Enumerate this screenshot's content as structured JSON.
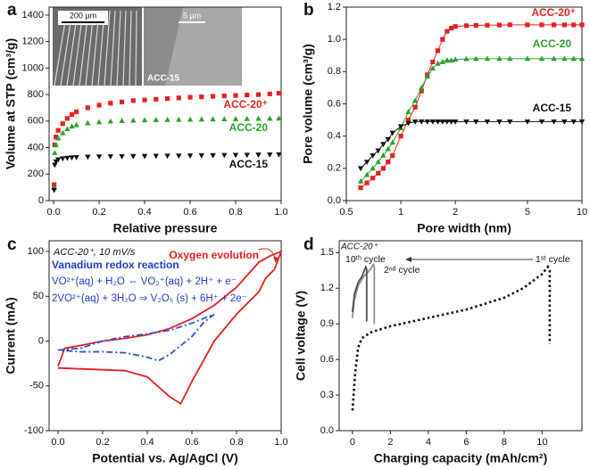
{
  "chart_data": [
    {
      "type": "scatter",
      "panel": "a",
      "xlabel": "Relative pressure",
      "ylabel": "Volume at STP (cm³/g)",
      "xlim": [
        -0.02,
        1.0
      ],
      "ylim": [
        0,
        1460
      ],
      "xticks": [
        {
          "value": 0.0,
          "label": "0.0"
        },
        0.2,
        0.4,
        0.6,
        0.8,
        {
          "value": 1.0,
          "label": "1.0"
        }
      ],
      "yticks": [
        0,
        200,
        400,
        600,
        800,
        1000,
        1200,
        1400
      ],
      "inset_labels": [
        "200 µm",
        "5 µm",
        "ACC-15"
      ],
      "x": [
        0.002,
        0.005,
        0.01,
        0.02,
        0.04,
        0.06,
        0.08,
        0.1,
        0.15,
        0.2,
        0.25,
        0.3,
        0.35,
        0.4,
        0.45,
        0.5,
        0.55,
        0.6,
        0.65,
        0.7,
        0.75,
        0.8,
        0.85,
        0.9,
        0.95,
        0.99
      ],
      "series": [
        {
          "name": "ACC-20⁺",
          "color": "#e8201f",
          "marker": "square",
          "values": [
            120,
            420,
            480,
            530,
            580,
            620,
            650,
            670,
            700,
            720,
            735,
            745,
            755,
            760,
            765,
            770,
            775,
            780,
            783,
            787,
            790,
            793,
            797,
            800,
            805,
            810
          ]
        },
        {
          "name": "ACC-20",
          "color": "#27a327",
          "marker": "triangle",
          "values": [
            100,
            360,
            420,
            470,
            510,
            540,
            560,
            570,
            585,
            592,
            598,
            602,
            605,
            607,
            609,
            610,
            611,
            612,
            613,
            614,
            615,
            616,
            617,
            618,
            619,
            620
          ]
        },
        {
          "name": "ACC-15",
          "color": "#111111",
          "marker": "down-triangle",
          "values": [
            80,
            270,
            295,
            310,
            318,
            322,
            325,
            327,
            330,
            332,
            333,
            334,
            335,
            336,
            337,
            338,
            339,
            340,
            341,
            342,
            343,
            344,
            345,
            346,
            347,
            348
          ]
        }
      ]
    },
    {
      "type": "scatter",
      "panel": "b",
      "xlabel": "Pore width (nm)",
      "ylabel": "Pore volume (cm³/g)",
      "xscale": "log",
      "connect": true,
      "xlim": [
        0.5,
        10
      ],
      "ylim": [
        0,
        1.2
      ],
      "xticks": [
        0.5,
        1,
        2,
        5,
        10
      ],
      "yticks": [
        {
          "value": 0.0,
          "label": "0.0"
        },
        0.2,
        0.4,
        0.6,
        0.8,
        {
          "value": 1.0,
          "label": "1.0"
        },
        1.2
      ],
      "x": [
        0.6,
        0.65,
        0.7,
        0.75,
        0.8,
        0.85,
        0.9,
        1.0,
        1.1,
        1.2,
        1.3,
        1.4,
        1.5,
        1.6,
        1.7,
        1.8,
        1.9,
        2.0,
        2.3,
        2.6,
        3,
        3.5,
        4,
        5,
        6,
        7,
        8,
        9,
        10
      ],
      "series": [
        {
          "name": "ACC-20⁺",
          "color": "#e8201f",
          "marker": "square",
          "values": [
            0.08,
            0.11,
            0.14,
            0.17,
            0.2,
            0.24,
            0.28,
            0.4,
            0.5,
            0.58,
            0.68,
            0.78,
            0.86,
            0.93,
            1.0,
            1.05,
            1.07,
            1.08,
            1.085,
            1.087,
            1.088,
            1.089,
            1.09,
            1.09,
            1.09,
            1.09,
            1.09,
            1.09,
            1.09
          ]
        },
        {
          "name": "ACC-20",
          "color": "#27a327",
          "marker": "triangle",
          "values": [
            0.12,
            0.16,
            0.2,
            0.24,
            0.28,
            0.32,
            0.36,
            0.45,
            0.55,
            0.62,
            0.7,
            0.77,
            0.82,
            0.85,
            0.86,
            0.87,
            0.87,
            0.875,
            0.878,
            0.88,
            0.88,
            0.88,
            0.88,
            0.88,
            0.88,
            0.88,
            0.88,
            0.88,
            0.88
          ]
        },
        {
          "name": "ACC-15",
          "color": "#111111",
          "marker": "down-triangle",
          "values": [
            0.2,
            0.24,
            0.28,
            0.31,
            0.35,
            0.38,
            0.42,
            0.46,
            0.48,
            0.49,
            0.49,
            0.49,
            0.49,
            0.49,
            0.49,
            0.49,
            0.49,
            0.49,
            0.49,
            0.49,
            0.49,
            0.49,
            0.49,
            0.49,
            0.49,
            0.49,
            0.49,
            0.49,
            0.49
          ]
        }
      ]
    },
    {
      "type": "line",
      "panel": "c",
      "xlabel": "Potential vs. Ag/AgCl (V)",
      "ylabel": "Current (mA)",
      "xlim": [
        -0.04,
        1.0
      ],
      "ylim": [
        -100,
        112
      ],
      "xticks": [
        {
          "value": 0.0,
          "label": "0.0"
        },
        0.2,
        0.4,
        0.6,
        0.8,
        {
          "value": 1.0,
          "label": "1.0"
        }
      ],
      "yticks": [
        -100,
        -50,
        0,
        50,
        100
      ],
      "annotations": [
        {
          "text": "ACC-20⁺, 10 mV/s",
          "color": "#111111"
        },
        {
          "text": "Oxygen evolution",
          "color": "#e02020"
        },
        {
          "text": "Vanadium redox reaction",
          "color": "#1f3fbf"
        },
        {
          "text": "VO²⁺(aq) + H₂O ⇔ VO₂⁺(aq) + 2H⁺ + e⁻",
          "color": "#1f3fbf"
        },
        {
          "text": "2VO²⁺(aq) + 3H₂O ⇒ V₂O₅ (s) + 6H⁺ + 2e⁻",
          "color": "#1f3fbf"
        }
      ],
      "series": [
        {
          "color": "#e02020",
          "dash": "solid",
          "x": [
            0,
            0.03,
            0.1,
            0.2,
            0.3,
            0.4,
            0.5,
            0.6,
            0.7,
            0.8,
            0.9,
            0.95,
            1.0,
            0.97,
            0.93,
            0.9,
            0.8,
            0.7,
            0.6,
            0.55,
            0.5,
            0.4,
            0.3,
            0.2,
            0.1,
            0
          ],
          "values": [
            -28,
            -8,
            -5,
            0,
            3,
            7,
            14,
            25,
            40,
            60,
            88,
            95,
            100,
            80,
            70,
            55,
            30,
            0,
            -45,
            -70,
            -62,
            -40,
            -33,
            -32,
            -31,
            -30
          ]
        },
        {
          "color": "#2a4fd6",
          "dash": "dashdot",
          "x": [
            0,
            0.1,
            0.2,
            0.3,
            0.4,
            0.5,
            0.6,
            0.7,
            0.65,
            0.6,
            0.5,
            0.45,
            0.4,
            0.3,
            0.2,
            0.1,
            0
          ],
          "values": [
            -10,
            -8,
            0,
            5,
            8,
            12,
            20,
            30,
            20,
            5,
            -15,
            -22,
            -18,
            -13,
            -12,
            -12,
            -10
          ]
        }
      ]
    },
    {
      "type": "line",
      "panel": "d",
      "xlabel": "Charging capacity (mAh/cm²)",
      "ylabel": "Cell voltage (V)",
      "xlim": [
        -0.7,
        12.1
      ],
      "ylim": [
        0,
        1.6
      ],
      "xticks": [
        0,
        2,
        4,
        6,
        8,
        10
      ],
      "yticks": [
        {
          "value": 0.0,
          "label": "0.0"
        },
        0.3,
        0.6,
        0.9,
        1.2,
        1.5
      ],
      "annotations": [
        {
          "text": "ACC-20⁺",
          "color": "#111111"
        },
        {
          "text": "10ᵗʰ cycle",
          "color": "#111111"
        },
        {
          "text": "2ⁿᵈ cycle",
          "color": "#111111"
        },
        {
          "text": "1ˢᵗ cycle",
          "color": "#111111"
        }
      ],
      "series": [
        {
          "color": "#111111",
          "dash": "dot",
          "x": [
            0,
            0.15,
            0.3,
            0.5,
            1,
            2,
            4,
            6,
            8,
            9,
            10,
            10.3,
            10.4,
            10.4
          ],
          "values": [
            0.17,
            0.5,
            0.7,
            0.78,
            0.83,
            0.88,
            0.95,
            1.02,
            1.12,
            1.2,
            1.32,
            1.38,
            1.35,
            0.73
          ]
        },
        {
          "color": "#8a8f94",
          "dash": "solid",
          "x": [
            0,
            0.1,
            0.3,
            0.6,
            0.9,
            1.1,
            1.15,
            1.15
          ],
          "values": [
            0.95,
            1.1,
            1.22,
            1.3,
            1.35,
            1.4,
            1.38,
            0.9
          ]
        },
        {
          "color": "#4a5056",
          "dash": "solid",
          "x": [
            0,
            0.1,
            0.3,
            0.5,
            0.7,
            0.75,
            0.75
          ],
          "values": [
            1.0,
            1.15,
            1.25,
            1.3,
            1.38,
            1.36,
            0.92
          ]
        }
      ]
    }
  ]
}
